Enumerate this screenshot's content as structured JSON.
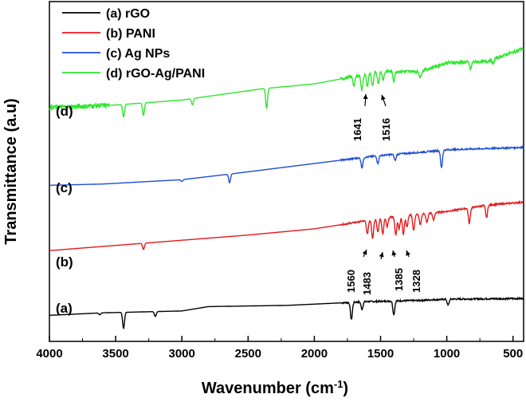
{
  "chart_data": {
    "type": "line",
    "title": "",
    "xlabel": "Wavenumber (cm",
    "xlabel_sup": "-1",
    "xlabel_tail": ")",
    "ylabel": "Transmittance (a.u)",
    "xlim": [
      4000,
      420
    ],
    "x_ticks": [
      4000,
      3500,
      3000,
      2500,
      2000,
      1500,
      1000,
      500
    ],
    "x_tick_labels": [
      "4000",
      "3500",
      "3000",
      "2500",
      "2000",
      "1500",
      "1000",
      "500"
    ],
    "y_ticks_shown": false,
    "legend_position": "top-left",
    "series": [
      {
        "name": "(a) rGO",
        "label": "(a)",
        "color": "#000000",
        "baseline": [
          [
            4000,
            0.06
          ],
          [
            3600,
            0.1
          ],
          [
            3000,
            0.13
          ],
          [
            2800,
            0.2
          ],
          [
            2200,
            0.22
          ],
          [
            1800,
            0.26
          ],
          [
            1600,
            0.28
          ],
          [
            1200,
            0.3
          ],
          [
            1000,
            0.32
          ],
          [
            420,
            0.33
          ]
        ],
        "peaks": [
          [
            3440,
            -0.26
          ],
          [
            3620,
            -0.03
          ],
          [
            3200,
            -0.08
          ],
          [
            1720,
            -0.28
          ],
          [
            1640,
            -0.12
          ],
          [
            1400,
            -0.22
          ],
          [
            990,
            -0.1
          ]
        ],
        "offset": 0.0
      },
      {
        "name": "(b) PANI",
        "label": "(b)",
        "color": "#e41a1c",
        "baseline": [
          [
            4000,
            0.1
          ],
          [
            3400,
            0.2
          ],
          [
            2500,
            0.35
          ],
          [
            2000,
            0.45
          ],
          [
            1700,
            0.55
          ],
          [
            1500,
            0.62
          ],
          [
            1000,
            0.73
          ],
          [
            700,
            0.83
          ],
          [
            420,
            0.88
          ]
        ],
        "peaks": [
          [
            3290,
            -0.1
          ],
          [
            1600,
            -0.22
          ],
          [
            1560,
            -0.3
          ],
          [
            1520,
            -0.22
          ],
          [
            1483,
            -0.26
          ],
          [
            1450,
            -0.15
          ],
          [
            1385,
            -0.3
          ],
          [
            1360,
            -0.2
          ],
          [
            1328,
            -0.3
          ],
          [
            1300,
            -0.18
          ],
          [
            1250,
            -0.25
          ],
          [
            1200,
            -0.18
          ],
          [
            1150,
            -0.15
          ],
          [
            1100,
            -0.12
          ],
          [
            830,
            -0.25
          ],
          [
            700,
            -0.2
          ]
        ],
        "offset": 1.0
      },
      {
        "name": "(c) Ag NPs",
        "label": "(c)",
        "color": "#1f4fd1",
        "baseline": [
          [
            4000,
            0.15
          ],
          [
            3600,
            0.17
          ],
          [
            3000,
            0.24
          ],
          [
            2600,
            0.34
          ],
          [
            2000,
            0.5
          ],
          [
            1700,
            0.58
          ],
          [
            1500,
            0.63
          ],
          [
            1200,
            0.68
          ],
          [
            1000,
            0.72
          ],
          [
            420,
            0.76
          ]
        ],
        "peaks": [
          [
            2640,
            -0.14
          ],
          [
            1640,
            -0.16
          ],
          [
            1520,
            -0.12
          ],
          [
            1390,
            -0.1
          ],
          [
            1040,
            -0.28
          ],
          [
            3000,
            -0.03
          ]
        ],
        "offset": 2.0
      },
      {
        "name": "(d) rGO-Ag/PANI",
        "label": "(d)",
        "color": "#2ee62e",
        "baseline": [
          [
            4000,
            0.4
          ],
          [
            3500,
            0.44
          ],
          [
            3000,
            0.52
          ],
          [
            2400,
            0.7
          ],
          [
            2000,
            0.78
          ],
          [
            1700,
            0.9
          ],
          [
            1500,
            0.98
          ],
          [
            1200,
            0.98
          ],
          [
            1000,
            1.12
          ],
          [
            700,
            1.14
          ],
          [
            420,
            1.35
          ]
        ],
        "peaks": [
          [
            3440,
            -0.2
          ],
          [
            3290,
            -0.2
          ],
          [
            2920,
            -0.1
          ],
          [
            2360,
            -0.32
          ],
          [
            1700,
            -0.15
          ],
          [
            1641,
            -0.25
          ],
          [
            1600,
            -0.2
          ],
          [
            1560,
            -0.22
          ],
          [
            1516,
            -0.18
          ],
          [
            1480,
            -0.12
          ],
          [
            1400,
            -0.15
          ],
          [
            1200,
            -0.1
          ],
          [
            820,
            -0.12
          ],
          [
            650,
            -0.08
          ]
        ],
        "offset": 3.0
      }
    ],
    "annotations": [
      {
        "text": "1641",
        "series": 3,
        "x": 1641
      },
      {
        "text": "1516",
        "series": 3,
        "x": 1516
      },
      {
        "text": "1560",
        "series": 1,
        "x": 1560
      },
      {
        "text": "1483",
        "series": 1,
        "x": 1483
      },
      {
        "text": "1385",
        "series": 1,
        "x": 1385
      },
      {
        "text": "1328",
        "series": 1,
        "x": 1328
      }
    ]
  }
}
